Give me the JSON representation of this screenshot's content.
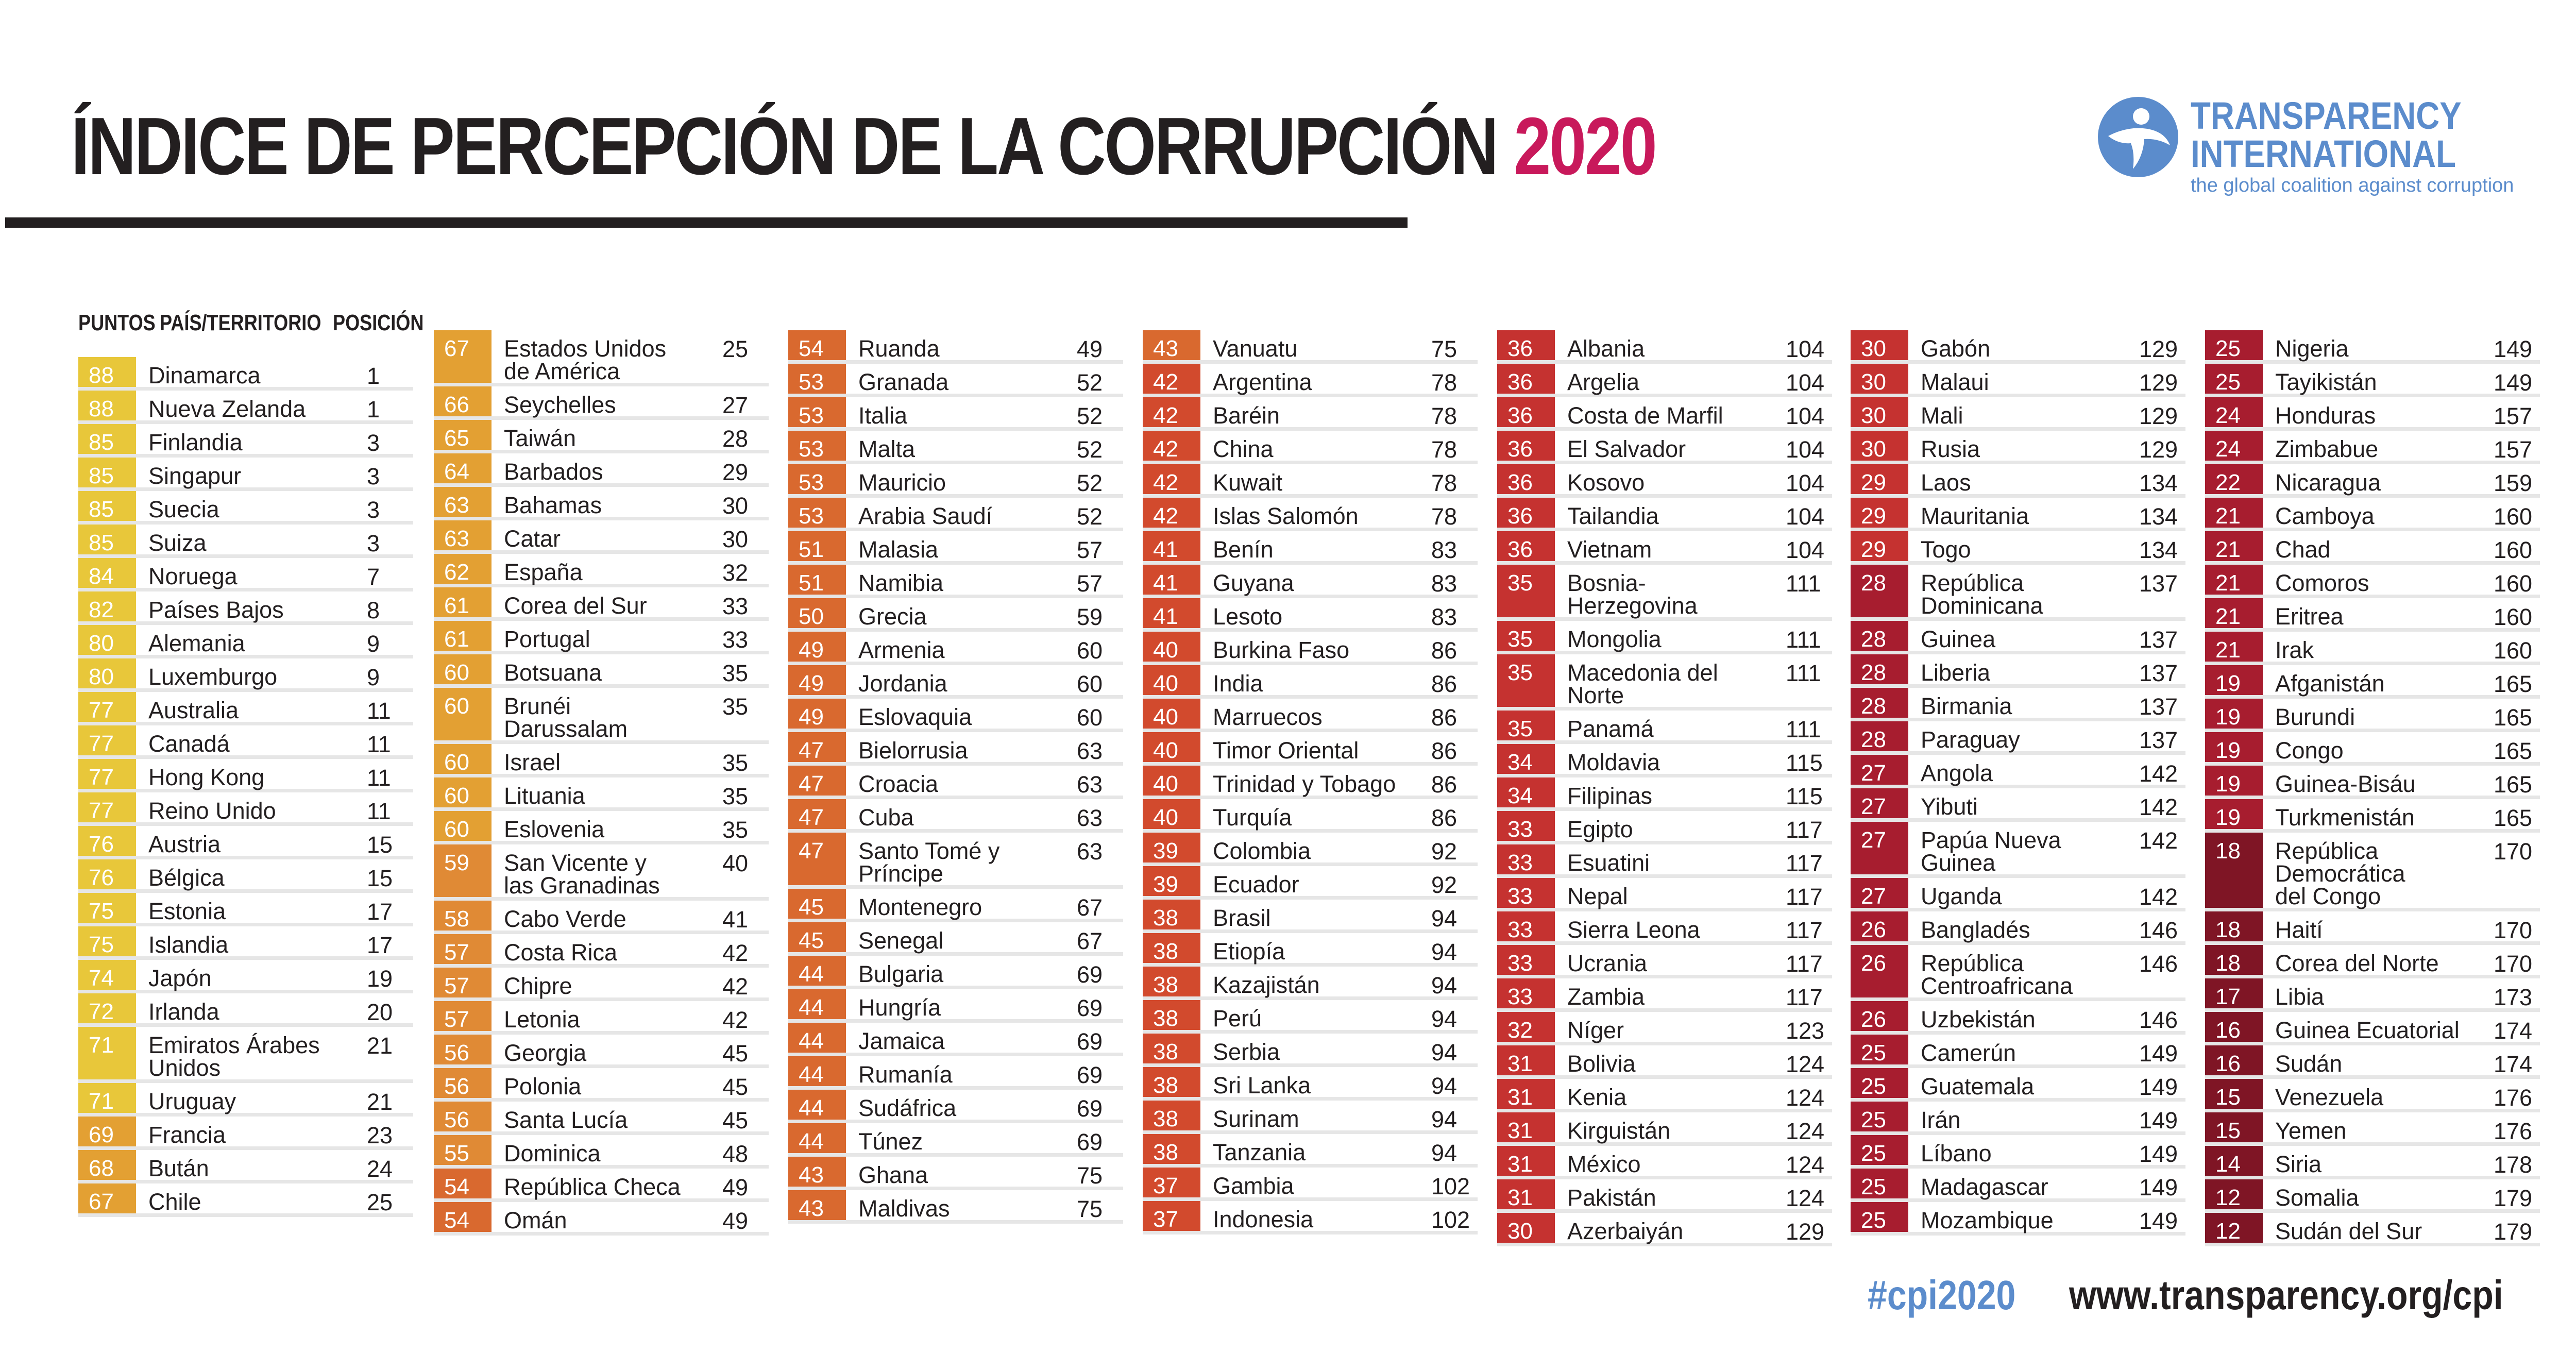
{
  "header": {
    "title_main": "ÍNDICE DE PERCEPCIÓN DE LA CORRUPCIÓN",
    "title_year": "2020"
  },
  "logo": {
    "line1": "TRANSPARENCY",
    "line2": "INTERNATIONAL",
    "tagline": "the global coalition against corruption"
  },
  "columns": {
    "score": "PUNTOS",
    "country": "PAÍS/TERRITORIO",
    "rank": "POSICIÓN"
  },
  "colors": {
    "title_year": "#c8195b",
    "brand_blue": "#5b8ccc",
    "text": "#231f20",
    "row_divider": "#e6e6e6",
    "score_scale": [
      "#e8c73a",
      "#e3a033",
      "#e08a35",
      "#d9692f",
      "#d24a2d",
      "#c53230",
      "#a71d2f",
      "#7f1525"
    ]
  },
  "footer": {
    "hashtag": "#cpi2020",
    "url": "www.transparency.org/cpi"
  },
  "chart_data": {
    "type": "table",
    "title": "ÍNDICE DE PERCEPCIÓN DE LA CORRUPCIÓN 2020",
    "columns": [
      "PUNTOS",
      "PAÍS/TERRITORIO",
      "POSICIÓN"
    ],
    "panels": [
      [
        {
          "score": 88,
          "country": "Dinamarca",
          "rank": 1
        },
        {
          "score": 88,
          "country": "Nueva Zelanda",
          "rank": 1
        },
        {
          "score": 85,
          "country": "Finlandia",
          "rank": 3
        },
        {
          "score": 85,
          "country": "Singapur",
          "rank": 3
        },
        {
          "score": 85,
          "country": "Suecia",
          "rank": 3
        },
        {
          "score": 85,
          "country": "Suiza",
          "rank": 3
        },
        {
          "score": 84,
          "country": "Noruega",
          "rank": 7
        },
        {
          "score": 82,
          "country": "Países Bajos",
          "rank": 8
        },
        {
          "score": 80,
          "country": "Alemania",
          "rank": 9
        },
        {
          "score": 80,
          "country": "Luxemburgo",
          "rank": 9
        },
        {
          "score": 77,
          "country": "Australia",
          "rank": 11
        },
        {
          "score": 77,
          "country": "Canadá",
          "rank": 11
        },
        {
          "score": 77,
          "country": "Hong Kong",
          "rank": 11
        },
        {
          "score": 77,
          "country": "Reino Unido",
          "rank": 11
        },
        {
          "score": 76,
          "country": "Austria",
          "rank": 15
        },
        {
          "score": 76,
          "country": "Bélgica",
          "rank": 15
        },
        {
          "score": 75,
          "country": "Estonia",
          "rank": 17
        },
        {
          "score": 75,
          "country": "Islandia",
          "rank": 17
        },
        {
          "score": 74,
          "country": "Japón",
          "rank": 19
        },
        {
          "score": 72,
          "country": "Irlanda",
          "rank": 20
        },
        {
          "score": 71,
          "country": "Emiratos Árabes\nUnidos",
          "rank": 21
        },
        {
          "score": 71,
          "country": "Uruguay",
          "rank": 21
        },
        {
          "score": 69,
          "country": "Francia",
          "rank": 23
        },
        {
          "score": 68,
          "country": "Bután",
          "rank": 24
        },
        {
          "score": 67,
          "country": "Chile",
          "rank": 25
        }
      ],
      [
        {
          "score": 67,
          "country": "Estados Unidos\nde América",
          "rank": 25
        },
        {
          "score": 66,
          "country": "Seychelles",
          "rank": 27
        },
        {
          "score": 65,
          "country": "Taiwán",
          "rank": 28
        },
        {
          "score": 64,
          "country": "Barbados",
          "rank": 29
        },
        {
          "score": 63,
          "country": "Bahamas",
          "rank": 30
        },
        {
          "score": 63,
          "country": "Catar",
          "rank": 30
        },
        {
          "score": 62,
          "country": "España",
          "rank": 32
        },
        {
          "score": 61,
          "country": "Corea del Sur",
          "rank": 33
        },
        {
          "score": 61,
          "country": "Portugal",
          "rank": 33
        },
        {
          "score": 60,
          "country": "Botsuana",
          "rank": 35
        },
        {
          "score": 60,
          "country": "Brunéi\nDarussalam",
          "rank": 35
        },
        {
          "score": 60,
          "country": "Israel",
          "rank": 35
        },
        {
          "score": 60,
          "country": "Lituania",
          "rank": 35
        },
        {
          "score": 60,
          "country": "Eslovenia",
          "rank": 35
        },
        {
          "score": 59,
          "country": "San Vicente y\nlas Granadinas",
          "rank": 40
        },
        {
          "score": 58,
          "country": "Cabo Verde",
          "rank": 41
        },
        {
          "score": 57,
          "country": "Costa Rica",
          "rank": 42
        },
        {
          "score": 57,
          "country": "Chipre",
          "rank": 42
        },
        {
          "score": 57,
          "country": "Letonia",
          "rank": 42
        },
        {
          "score": 56,
          "country": "Georgia",
          "rank": 45
        },
        {
          "score": 56,
          "country": "Polonia",
          "rank": 45
        },
        {
          "score": 56,
          "country": "Santa Lucía",
          "rank": 45
        },
        {
          "score": 55,
          "country": "Dominica",
          "rank": 48
        },
        {
          "score": 54,
          "country": "República Checa",
          "rank": 49
        },
        {
          "score": 54,
          "country": "Omán",
          "rank": 49
        }
      ],
      [
        {
          "score": 54,
          "country": "Ruanda",
          "rank": 49
        },
        {
          "score": 53,
          "country": "Granada",
          "rank": 52
        },
        {
          "score": 53,
          "country": "Italia",
          "rank": 52
        },
        {
          "score": 53,
          "country": "Malta",
          "rank": 52
        },
        {
          "score": 53,
          "country": "Mauricio",
          "rank": 52
        },
        {
          "score": 53,
          "country": "Arabia Saudí",
          "rank": 52
        },
        {
          "score": 51,
          "country": "Malasia",
          "rank": 57
        },
        {
          "score": 51,
          "country": "Namibia",
          "rank": 57
        },
        {
          "score": 50,
          "country": "Grecia",
          "rank": 59
        },
        {
          "score": 49,
          "country": "Armenia",
          "rank": 60
        },
        {
          "score": 49,
          "country": "Jordania",
          "rank": 60
        },
        {
          "score": 49,
          "country": "Eslovaquia",
          "rank": 60
        },
        {
          "score": 47,
          "country": "Bielorrusia",
          "rank": 63
        },
        {
          "score": 47,
          "country": "Croacia",
          "rank": 63
        },
        {
          "score": 47,
          "country": "Cuba",
          "rank": 63
        },
        {
          "score": 47,
          "country": "Santo Tomé y\nPríncipe",
          "rank": 63
        },
        {
          "score": 45,
          "country": "Montenegro",
          "rank": 67
        },
        {
          "score": 45,
          "country": "Senegal",
          "rank": 67
        },
        {
          "score": 44,
          "country": "Bulgaria",
          "rank": 69
        },
        {
          "score": 44,
          "country": "Hungría",
          "rank": 69
        },
        {
          "score": 44,
          "country": "Jamaica",
          "rank": 69
        },
        {
          "score": 44,
          "country": "Rumanía",
          "rank": 69
        },
        {
          "score": 44,
          "country": "Sudáfrica",
          "rank": 69
        },
        {
          "score": 44,
          "country": "Túnez",
          "rank": 69
        },
        {
          "score": 43,
          "country": "Ghana",
          "rank": 75
        },
        {
          "score": 43,
          "country": "Maldivas",
          "rank": 75
        }
      ],
      [
        {
          "score": 43,
          "country": "Vanuatu",
          "rank": 75
        },
        {
          "score": 42,
          "country": "Argentina",
          "rank": 78
        },
        {
          "score": 42,
          "country": "Baréin",
          "rank": 78
        },
        {
          "score": 42,
          "country": "China",
          "rank": 78
        },
        {
          "score": 42,
          "country": "Kuwait",
          "rank": 78
        },
        {
          "score": 42,
          "country": "Islas Salomón",
          "rank": 78
        },
        {
          "score": 41,
          "country": "Benín",
          "rank": 83
        },
        {
          "score": 41,
          "country": "Guyana",
          "rank": 83
        },
        {
          "score": 41,
          "country": "Lesoto",
          "rank": 83
        },
        {
          "score": 40,
          "country": "Burkina Faso",
          "rank": 86
        },
        {
          "score": 40,
          "country": "India",
          "rank": 86
        },
        {
          "score": 40,
          "country": "Marruecos",
          "rank": 86
        },
        {
          "score": 40,
          "country": "Timor Oriental",
          "rank": 86
        },
        {
          "score": 40,
          "country": "Trinidad y Tobago",
          "rank": 86
        },
        {
          "score": 40,
          "country": "Turquía",
          "rank": 86
        },
        {
          "score": 39,
          "country": "Colombia",
          "rank": 92
        },
        {
          "score": 39,
          "country": "Ecuador",
          "rank": 92
        },
        {
          "score": 38,
          "country": "Brasil",
          "rank": 94
        },
        {
          "score": 38,
          "country": "Etiopía",
          "rank": 94
        },
        {
          "score": 38,
          "country": "Kazajistán",
          "rank": 94
        },
        {
          "score": 38,
          "country": "Perú",
          "rank": 94
        },
        {
          "score": 38,
          "country": "Serbia",
          "rank": 94
        },
        {
          "score": 38,
          "country": "Sri Lanka",
          "rank": 94
        },
        {
          "score": 38,
          "country": "Surinam",
          "rank": 94
        },
        {
          "score": 38,
          "country": "Tanzania",
          "rank": 94
        },
        {
          "score": 37,
          "country": "Gambia",
          "rank": 102
        },
        {
          "score": 37,
          "country": "Indonesia",
          "rank": 102
        }
      ],
      [
        {
          "score": 36,
          "country": "Albania",
          "rank": 104
        },
        {
          "score": 36,
          "country": "Argelia",
          "rank": 104
        },
        {
          "score": 36,
          "country": "Costa de Marfil",
          "rank": 104
        },
        {
          "score": 36,
          "country": "El Salvador",
          "rank": 104
        },
        {
          "score": 36,
          "country": "Kosovo",
          "rank": 104
        },
        {
          "score": 36,
          "country": "Tailandia",
          "rank": 104
        },
        {
          "score": 36,
          "country": "Vietnam",
          "rank": 104
        },
        {
          "score": 35,
          "country": "Bosnia-\nHerzegovina",
          "rank": 111
        },
        {
          "score": 35,
          "country": "Mongolia",
          "rank": 111
        },
        {
          "score": 35,
          "country": "Macedonia del\nNorte",
          "rank": 111
        },
        {
          "score": 35,
          "country": "Panamá",
          "rank": 111
        },
        {
          "score": 34,
          "country": "Moldavia",
          "rank": 115
        },
        {
          "score": 34,
          "country": "Filipinas",
          "rank": 115
        },
        {
          "score": 33,
          "country": "Egipto",
          "rank": 117
        },
        {
          "score": 33,
          "country": "Esuatini",
          "rank": 117
        },
        {
          "score": 33,
          "country": "Nepal",
          "rank": 117
        },
        {
          "score": 33,
          "country": "Sierra Leona",
          "rank": 117
        },
        {
          "score": 33,
          "country": "Ucrania",
          "rank": 117
        },
        {
          "score": 33,
          "country": "Zambia",
          "rank": 117
        },
        {
          "score": 32,
          "country": "Níger",
          "rank": 123
        },
        {
          "score": 31,
          "country": "Bolivia",
          "rank": 124
        },
        {
          "score": 31,
          "country": "Kenia",
          "rank": 124
        },
        {
          "score": 31,
          "country": "Kirguistán",
          "rank": 124
        },
        {
          "score": 31,
          "country": "México",
          "rank": 124
        },
        {
          "score": 31,
          "country": "Pakistán",
          "rank": 124
        },
        {
          "score": 30,
          "country": "Azerbaiyán",
          "rank": 129
        }
      ],
      [
        {
          "score": 30,
          "country": "Gabón",
          "rank": 129
        },
        {
          "score": 30,
          "country": "Malaui",
          "rank": 129
        },
        {
          "score": 30,
          "country": "Mali",
          "rank": 129
        },
        {
          "score": 30,
          "country": "Rusia",
          "rank": 129
        },
        {
          "score": 29,
          "country": "Laos",
          "rank": 134
        },
        {
          "score": 29,
          "country": "Mauritania",
          "rank": 134
        },
        {
          "score": 29,
          "country": "Togo",
          "rank": 134
        },
        {
          "score": 28,
          "country": "República\nDominicana",
          "rank": 137
        },
        {
          "score": 28,
          "country": "Guinea",
          "rank": 137
        },
        {
          "score": 28,
          "country": "Liberia",
          "rank": 137
        },
        {
          "score": 28,
          "country": "Birmania",
          "rank": 137
        },
        {
          "score": 28,
          "country": "Paraguay",
          "rank": 137
        },
        {
          "score": 27,
          "country": "Angola",
          "rank": 142
        },
        {
          "score": 27,
          "country": "Yibuti",
          "rank": 142
        },
        {
          "score": 27,
          "country": "Papúa Nueva\nGuinea",
          "rank": 142
        },
        {
          "score": 27,
          "country": "Uganda",
          "rank": 142
        },
        {
          "score": 26,
          "country": "Bangladés",
          "rank": 146
        },
        {
          "score": 26,
          "country": "República\nCentroafricana",
          "rank": 146
        },
        {
          "score": 26,
          "country": "Uzbekistán",
          "rank": 146
        },
        {
          "score": 25,
          "country": "Camerún",
          "rank": 149
        },
        {
          "score": 25,
          "country": "Guatemala",
          "rank": 149
        },
        {
          "score": 25,
          "country": "Irán",
          "rank": 149
        },
        {
          "score": 25,
          "country": "Líbano",
          "rank": 149
        },
        {
          "score": 25,
          "country": "Madagascar",
          "rank": 149
        },
        {
          "score": 25,
          "country": "Mozambique",
          "rank": 149
        }
      ],
      [
        {
          "score": 25,
          "country": "Nigeria",
          "rank": 149
        },
        {
          "score": 25,
          "country": "Tayikistán",
          "rank": 149
        },
        {
          "score": 24,
          "country": "Honduras",
          "rank": 157
        },
        {
          "score": 24,
          "country": "Zimbabue",
          "rank": 157
        },
        {
          "score": 22,
          "country": "Nicaragua",
          "rank": 159
        },
        {
          "score": 21,
          "country": "Camboya",
          "rank": 160
        },
        {
          "score": 21,
          "country": "Chad",
          "rank": 160
        },
        {
          "score": 21,
          "country": "Comoros",
          "rank": 160
        },
        {
          "score": 21,
          "country": "Eritrea",
          "rank": 160
        },
        {
          "score": 21,
          "country": "Irak",
          "rank": 160
        },
        {
          "score": 19,
          "country": "Afganistán",
          "rank": 165
        },
        {
          "score": 19,
          "country": "Burundi",
          "rank": 165
        },
        {
          "score": 19,
          "country": "Congo",
          "rank": 165
        },
        {
          "score": 19,
          "country": "Guinea-Bisáu",
          "rank": 165
        },
        {
          "score": 19,
          "country": "Turkmenistán",
          "rank": 165
        },
        {
          "score": 18,
          "country": "República\nDemocrática\ndel Congo",
          "rank": 170
        },
        {
          "score": 18,
          "country": "Haití",
          "rank": 170
        },
        {
          "score": 18,
          "country": "Corea del Norte",
          "rank": 170
        },
        {
          "score": 17,
          "country": "Libia",
          "rank": 173
        },
        {
          "score": 16,
          "country": "Guinea Ecuatorial",
          "rank": 174
        },
        {
          "score": 16,
          "country": "Sudán",
          "rank": 174
        },
        {
          "score": 15,
          "country": "Venezuela",
          "rank": 176
        },
        {
          "score": 15,
          "country": "Yemen",
          "rank": 176
        },
        {
          "score": 14,
          "country": "Siria",
          "rank": 178
        },
        {
          "score": 12,
          "country": "Somalia",
          "rank": 179
        },
        {
          "score": 12,
          "country": "Sudán del Sur",
          "rank": 179
        }
      ]
    ]
  }
}
